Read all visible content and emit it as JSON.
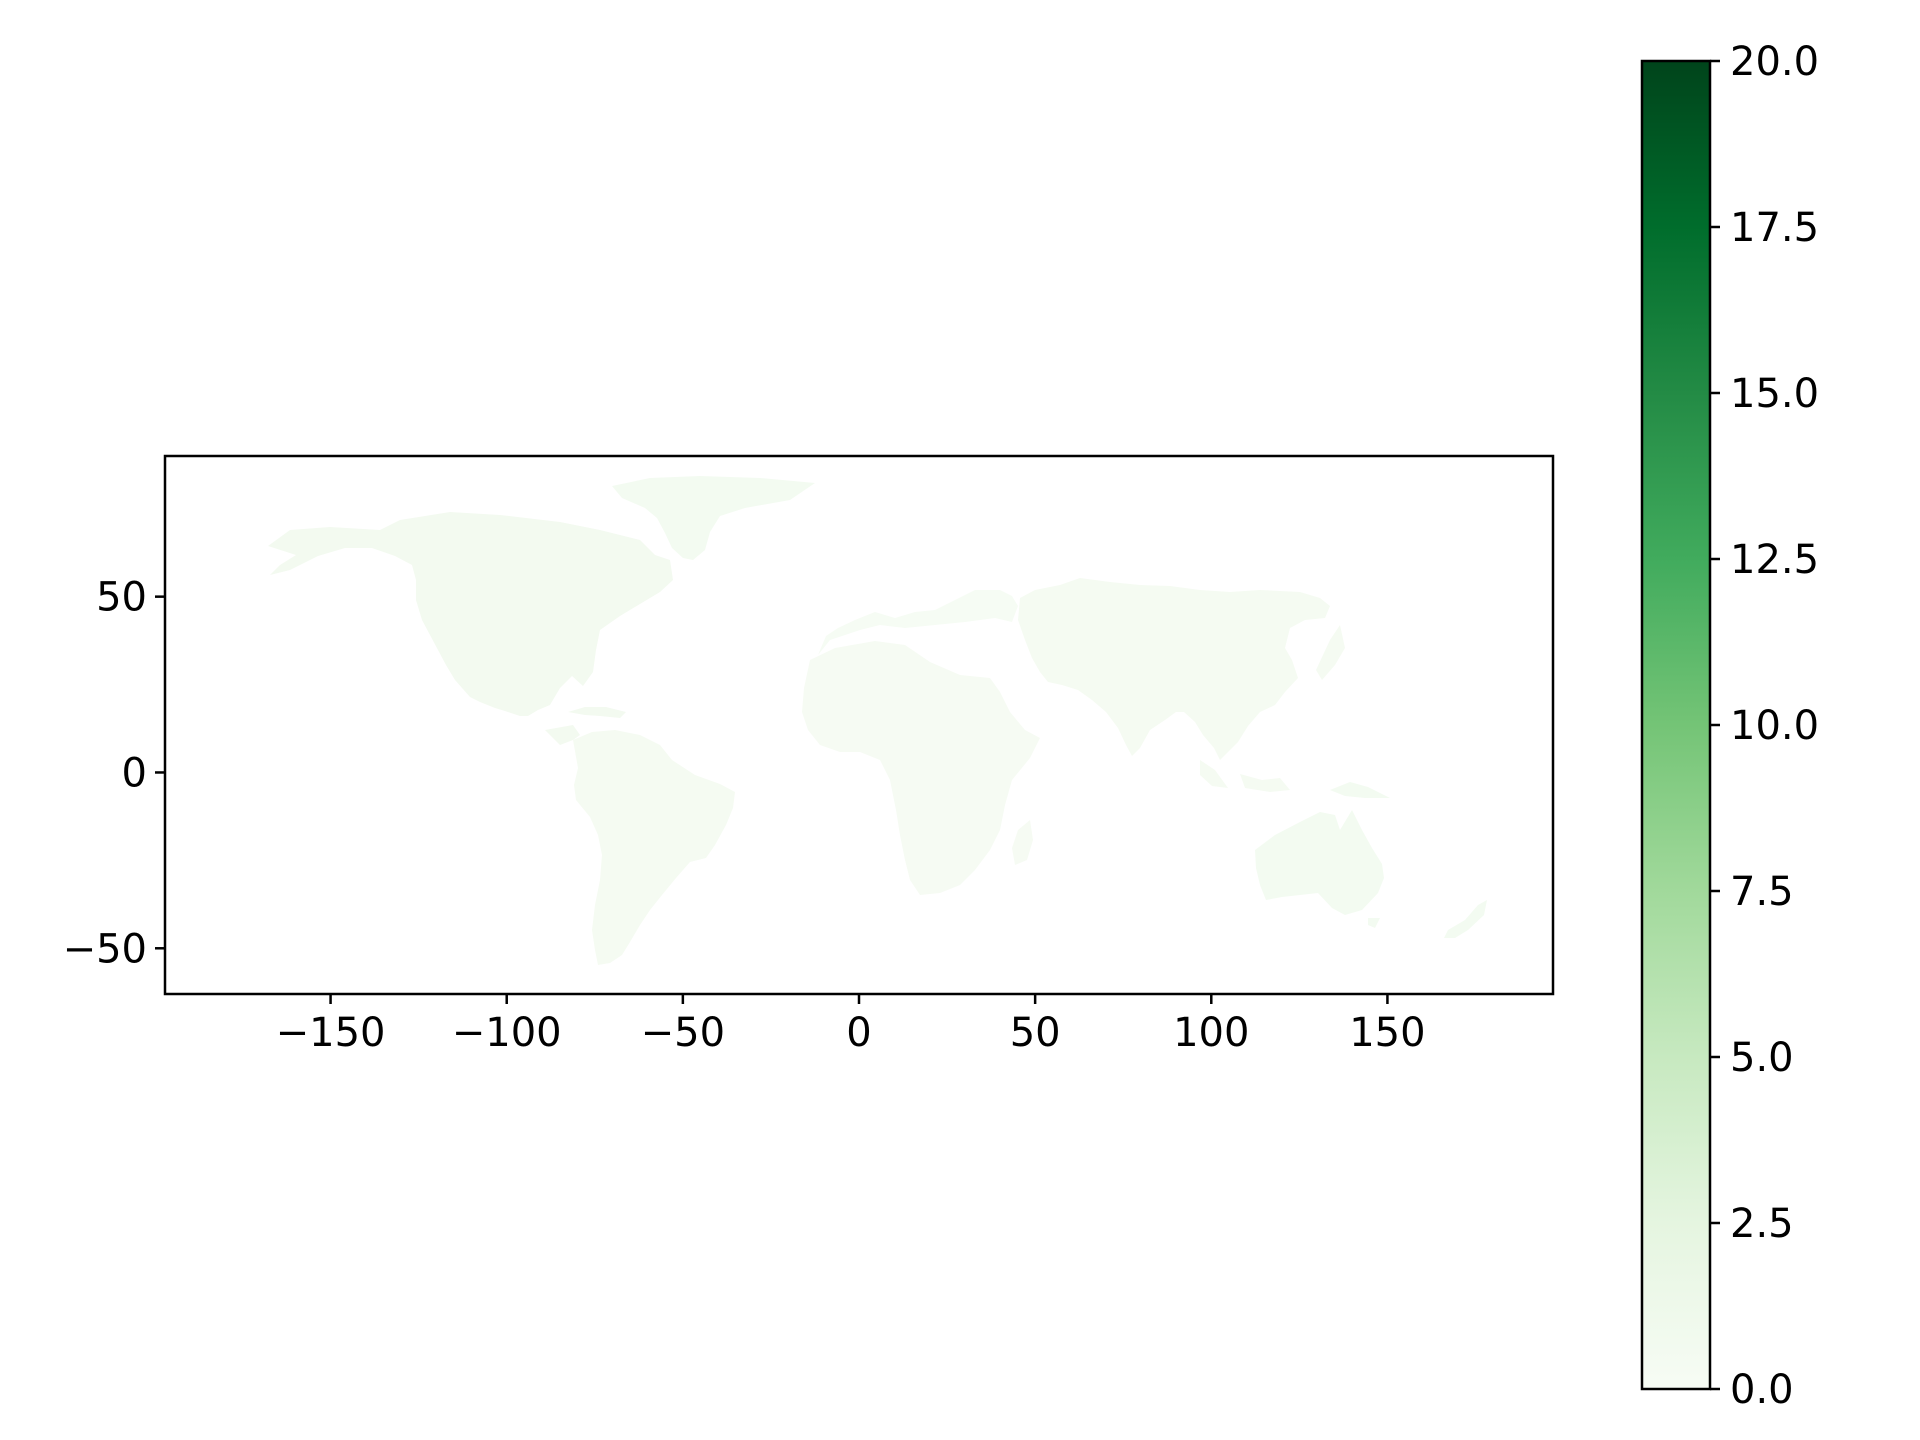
{
  "chart_data": {
    "type": "choropleth map",
    "title": "",
    "xlabel": "",
    "ylabel": "",
    "xlim": [
      -197,
      197
    ],
    "ylim": [
      -63,
      90
    ],
    "x_ticks": [
      -150,
      -100,
      -50,
      0,
      50,
      100,
      150
    ],
    "x_tick_labels": [
      "−150",
      "−100",
      "−50",
      "0",
      "50",
      "100",
      "150"
    ],
    "y_ticks": [
      50,
      0,
      -50
    ],
    "y_tick_labels": [
      "50",
      "0",
      "−50"
    ],
    "grid": false,
    "colormap": "Greens",
    "colormap_stops": [
      "#f7fcf5",
      "#e5f5e0",
      "#c7e9c0",
      "#a1d99b",
      "#74c476",
      "#41ab5d",
      "#238b45",
      "#006d2c",
      "#00441b"
    ],
    "colorbar": {
      "range": [
        0,
        20
      ],
      "ticks": [
        0,
        2.5,
        5,
        7.5,
        10,
        12.5,
        15,
        17.5,
        20
      ],
      "tick_labels": [
        "0.0",
        "2.5",
        "5.0",
        "7.5",
        "10.0",
        "12.5",
        "15.0",
        "17.5",
        "20.0"
      ],
      "placement": "right"
    },
    "regions": [
      {
        "id": "north-america",
        "value": 0.6
      },
      {
        "id": "greenland",
        "value": 0.5
      },
      {
        "id": "south-america",
        "value": 0.3
      },
      {
        "id": "africa",
        "value": 0.2
      },
      {
        "id": "europe",
        "value": 0.1
      },
      {
        "id": "asia",
        "value": 0.3
      },
      {
        "id": "oceania",
        "value": 0.5
      }
    ]
  }
}
